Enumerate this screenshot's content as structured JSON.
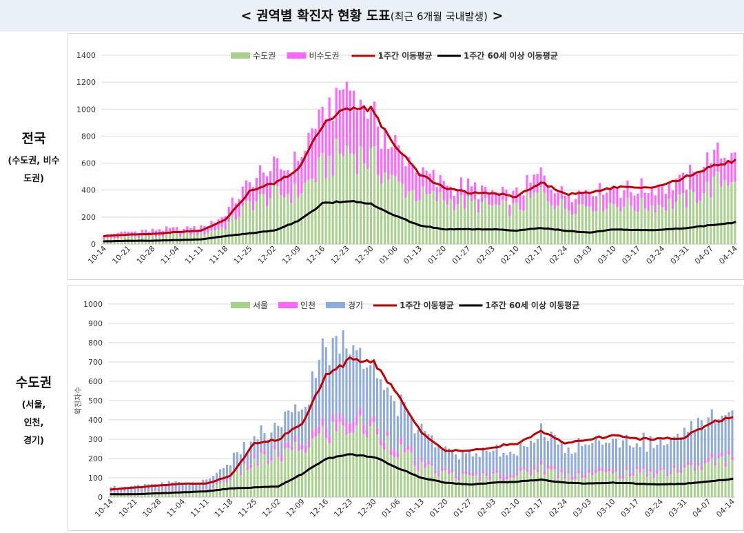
{
  "page_title": {
    "main": "< 권역별 확진자 현황 도표",
    "sub": "(최근 6개월 국내발생)",
    "tail": " >"
  },
  "row_labels": [
    {
      "title": "전국",
      "lines": [
        "(수도권, 비수",
        "도권)"
      ]
    },
    {
      "title": "수도권",
      "lines": [
        "(서울,",
        "인천,",
        "경기)"
      ]
    }
  ],
  "colors": {
    "green": "#a9d18e",
    "magenta": "#ff66ff",
    "blue": "#8faadc",
    "red": "#c00000",
    "black": "#000000"
  },
  "chart_data": [
    {
      "type": "bar",
      "stacked": true,
      "ylim": [
        0,
        1400
      ],
      "yticks": [
        0,
        200,
        400,
        600,
        800,
        1000,
        1200,
        1400
      ],
      "ylabel": "",
      "grid": true,
      "legend_position": "top",
      "x_tick_labels": [
        "10-14",
        "10-21",
        "10-28",
        "11-04",
        "11-11",
        "11-18",
        "11-25",
        "12-02",
        "12-09",
        "12-16",
        "12-23",
        "12-30",
        "01-06",
        "01-13",
        "01-20",
        "01-27",
        "02-03",
        "02-10",
        "02-17",
        "02-24",
        "03-03",
        "03-10",
        "03-17",
        "03-24",
        "03-31",
        "04-07",
        "04-14"
      ],
      "series": [
        {
          "name": "수도권",
          "kind": "bar",
          "color": "green",
          "weekly_values": [
            40,
            55,
            60,
            70,
            75,
            130,
            300,
            360,
            380,
            560,
            700,
            620,
            450,
            360,
            330,
            300,
            280,
            260,
            380,
            270,
            300,
            300,
            280,
            290,
            320,
            420,
            520
          ]
        },
        {
          "name": "비수도권",
          "kind": "bar",
          "color": "magenta",
          "weekly_values": [
            30,
            35,
            40,
            45,
            50,
            90,
            170,
            190,
            230,
            380,
            450,
            330,
            250,
            180,
            120,
            110,
            100,
            100,
            140,
            110,
            110,
            120,
            120,
            130,
            160,
            220,
            180
          ]
        },
        {
          "name": "1주간 이동평균",
          "kind": "line",
          "color": "red",
          "weekly_values": [
            60,
            70,
            75,
            90,
            100,
            180,
            390,
            450,
            550,
            880,
            1010,
            1000,
            730,
            520,
            420,
            380,
            380,
            350,
            460,
            370,
            380,
            420,
            420,
            430,
            500,
            570,
            620
          ]
        },
        {
          "name": "1주간 60세 이상 이동평균",
          "kind": "line",
          "color": "black",
          "weekly_values": [
            20,
            25,
            25,
            30,
            35,
            60,
            80,
            100,
            170,
            300,
            320,
            300,
            210,
            140,
            110,
            110,
            110,
            100,
            120,
            100,
            85,
            110,
            105,
            105,
            120,
            140,
            160
          ]
        }
      ]
    },
    {
      "type": "bar",
      "stacked": true,
      "ylim": [
        0,
        1000
      ],
      "yticks": [
        0,
        100,
        200,
        300,
        400,
        500,
        600,
        700,
        800,
        900,
        1000
      ],
      "ylabel": "확진자수",
      "grid": true,
      "legend_position": "top",
      "x_tick_labels": [
        "10-14",
        "10-21",
        "10-28",
        "11-04",
        "11-11",
        "11-18",
        "11-25",
        "12-02",
        "12-09",
        "12-16",
        "12-23",
        "12-30",
        "01-06",
        "01-13",
        "01-20",
        "01-27",
        "02-03",
        "02-10",
        "02-17",
        "02-24",
        "03-03",
        "03-10",
        "03-17",
        "03-24",
        "03-31",
        "04-07",
        "04-14"
      ],
      "series": [
        {
          "name": "서울",
          "kind": "bar",
          "color": "green",
          "weekly_values": [
            20,
            25,
            30,
            30,
            35,
            100,
            180,
            210,
            250,
            330,
            370,
            340,
            250,
            150,
            120,
            100,
            110,
            110,
            150,
            110,
            120,
            120,
            120,
            130,
            140,
            170,
            200
          ]
        },
        {
          "name": "인천",
          "kind": "bar",
          "color": "magenta",
          "weekly_values": [
            5,
            5,
            5,
            5,
            5,
            10,
            20,
            25,
            30,
            50,
            50,
            45,
            30,
            20,
            15,
            15,
            15,
            15,
            20,
            15,
            15,
            15,
            15,
            15,
            15,
            20,
            20
          ]
        },
        {
          "name": "경기",
          "kind": "bar",
          "color": "blue",
          "weekly_values": [
            25,
            30,
            35,
            35,
            40,
            80,
            100,
            120,
            180,
            380,
            380,
            340,
            220,
            150,
            110,
            100,
            110,
            110,
            160,
            130,
            150,
            150,
            150,
            140,
            160,
            220,
            200
          ]
        },
        {
          "name": "1주간 이동평균",
          "kind": "line",
          "color": "red",
          "weekly_values": [
            40,
            50,
            60,
            70,
            70,
            110,
            280,
            300,
            380,
            630,
            710,
            700,
            530,
            330,
            240,
            240,
            260,
            280,
            340,
            280,
            300,
            320,
            300,
            300,
            310,
            380,
            420
          ]
        },
        {
          "name": "1주간 60세 이상 이동평균",
          "kind": "line",
          "color": "black",
          "weekly_values": [
            15,
            15,
            20,
            25,
            30,
            45,
            50,
            55,
            120,
            200,
            220,
            210,
            150,
            100,
            75,
            65,
            75,
            80,
            90,
            75,
            70,
            75,
            70,
            65,
            70,
            80,
            95
          ]
        }
      ]
    }
  ]
}
